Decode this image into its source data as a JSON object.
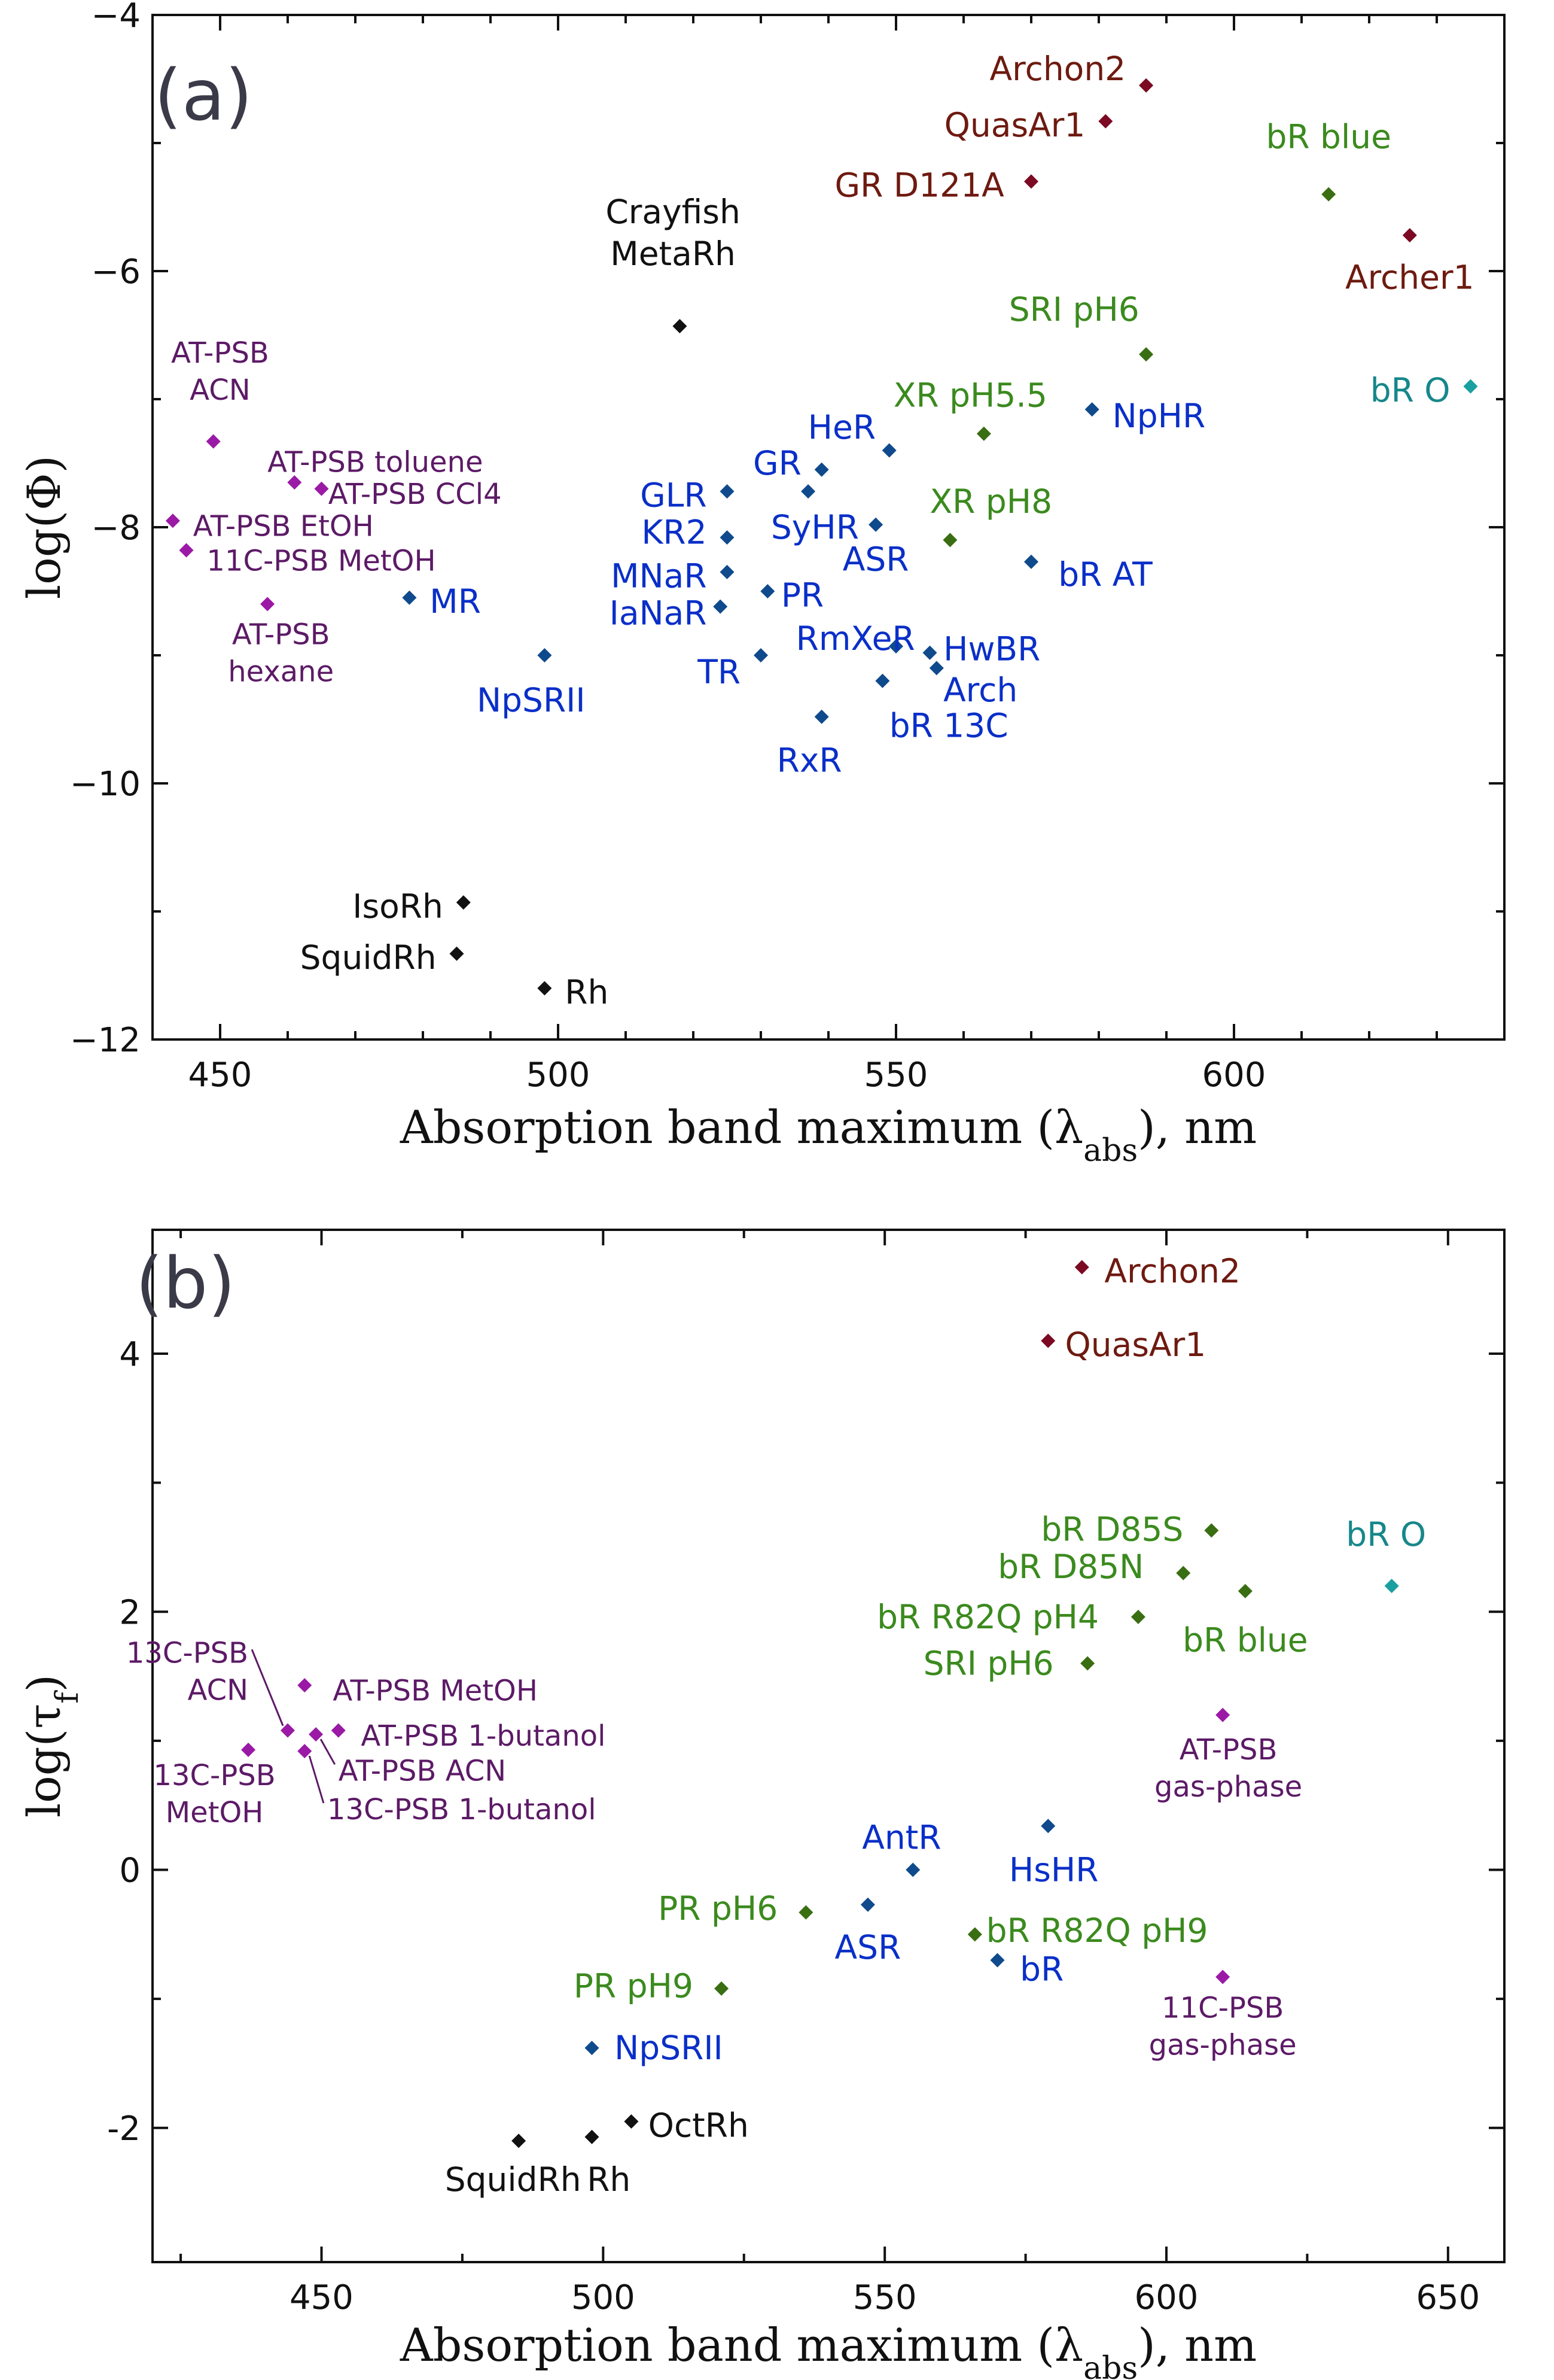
{
  "chart_data": [
    {
      "type": "scatter",
      "panel_letter": "(a)",
      "xlabel": "Absorption band maximum (λabs), nm",
      "ylabel": "log(Φ)",
      "xlim": [
        440,
        640
      ],
      "ylim": [
        -12,
        -4
      ],
      "xticks": [
        "450",
        "500",
        "550",
        "600"
      ],
      "xtick_values": [
        450,
        500,
        550,
        600
      ],
      "yticks": [
        "−4",
        "−6",
        "−8",
        "−10",
        "−12"
      ],
      "ytick_values": [
        -4,
        -6,
        -8,
        -10,
        -12
      ],
      "minor_xticks": [
        460,
        470,
        480,
        490,
        510,
        520,
        530,
        540,
        560,
        570,
        580,
        590,
        610,
        620,
        630
      ],
      "minor_yticks": [
        -5,
        -7,
        -9,
        -11
      ],
      "points": [
        {
          "label": "Archon2",
          "x": 587,
          "y": -4.55,
          "color": "#7b0a22",
          "lines": [
            "Archon2"
          ],
          "anchor": "end",
          "lx": 584,
          "ly": -4.42
        },
        {
          "label": "QuasAr1",
          "x": 581,
          "y": -4.83,
          "color": "#7b0a22",
          "lines": [
            "QuasAr1"
          ],
          "anchor": "end",
          "lx": 578,
          "ly": -4.86
        },
        {
          "label": "GR D121A",
          "x": 570,
          "y": -5.3,
          "color": "#7b0a22",
          "lines": [
            "GR D121A"
          ],
          "anchor": "end",
          "lx": 566,
          "ly": -5.33
        },
        {
          "label": "Archer1",
          "x": 626,
          "y": -5.72,
          "color": "#7b0a22",
          "lines": [
            "Archer1"
          ],
          "anchor": "middle",
          "lx": 626,
          "ly": -6.05
        },
        {
          "label": "bR blue",
          "x": 614,
          "y": -5.4,
          "color": "#3a6e12",
          "lines": [
            "bR blue"
          ],
          "anchor": "middle",
          "lx": 614,
          "ly": -4.95
        },
        {
          "label": "SRI pH6",
          "x": 587,
          "y": -6.65,
          "color": "#3a6e12",
          "lines": [
            "SRI pH6"
          ],
          "anchor": "end",
          "lx": 586,
          "ly": -6.3
        },
        {
          "label": "XR pH5.5",
          "x": 563,
          "y": -7.27,
          "color": "#3a6e12",
          "lines": [
            "XR pH5.5"
          ],
          "anchor": "middle",
          "lx": 561,
          "ly": -6.97
        },
        {
          "label": "XR pH8",
          "x": 558,
          "y": -8.1,
          "color": "#3a6e12",
          "lines": [
            "XR pH8"
          ],
          "anchor": "start",
          "lx": 555,
          "ly": -7.8
        },
        {
          "label": "bR O",
          "x": 635,
          "y": -6.9,
          "color": "#1aa0a0",
          "lines": [
            "bR O"
          ],
          "anchor": "end",
          "lx": 632,
          "ly": -6.93
        },
        {
          "label": "Crayfish MetaRh",
          "x": 518,
          "y": -6.43,
          "color": "#111111",
          "lines": [
            "Crayfish",
            "MetaRh"
          ],
          "anchor": "middle",
          "lx": 517,
          "ly": -5.7
        },
        {
          "label": "IsoRh",
          "x": 486,
          "y": -10.93,
          "color": "#111111",
          "lines": [
            "IsoRh"
          ],
          "anchor": "end",
          "lx": 483,
          "ly": -10.96
        },
        {
          "label": "SquidRh",
          "x": 485,
          "y": -11.33,
          "color": "#111111",
          "lines": [
            "SquidRh"
          ],
          "anchor": "end",
          "lx": 482,
          "ly": -11.36
        },
        {
          "label": "Rh",
          "x": 498,
          "y": -11.6,
          "color": "#111111",
          "lines": [
            "Rh"
          ],
          "anchor": "start",
          "lx": 501,
          "ly": -11.63
        },
        {
          "label": "AT-PSB ACN",
          "x": 449,
          "y": -7.33,
          "color": "#9a1aa6",
          "lines": [
            "AT-PSB",
            "ACN"
          ],
          "anchor": "middle",
          "lx": 450,
          "ly": -6.77
        },
        {
          "label": "AT-PSB toluene",
          "x": 461,
          "y": -7.65,
          "color": "#9a1aa6",
          "lines": [
            "AT-PSB toluene"
          ],
          "anchor": "start",
          "lx": 457,
          "ly": -7.48
        },
        {
          "label": "AT-PSB CCl4",
          "x": 465,
          "y": -7.7,
          "color": "#9a1aa6",
          "lines": [
            "AT-PSB CCl4"
          ],
          "anchor": "start",
          "lx": 466,
          "ly": -7.73
        },
        {
          "label": "AT-PSB EtOH",
          "x": 443,
          "y": -7.95,
          "color": "#9a1aa6",
          "lines": [
            "AT-PSB EtOH"
          ],
          "anchor": "start",
          "lx": 446,
          "ly": -7.98
        },
        {
          "label": "11C-PSB MetOH",
          "x": 445,
          "y": -8.18,
          "color": "#9a1aa6",
          "lines": [
            "11C-PSB MetOH"
          ],
          "anchor": "start",
          "lx": 448,
          "ly": -8.25
        },
        {
          "label": "AT-PSB hexane",
          "x": 457,
          "y": -8.6,
          "color": "#9a1aa6",
          "lines": [
            "AT-PSB",
            "hexane"
          ],
          "anchor": "middle",
          "lx": 459,
          "ly": -8.97
        },
        {
          "label": "MR",
          "x": 478,
          "y": -8.55,
          "color": "#0f4a8c",
          "lines": [
            "MR"
          ],
          "anchor": "start",
          "lx": 481,
          "ly": -8.58
        },
        {
          "label": "NpSRII",
          "x": 498,
          "y": -9.0,
          "color": "#0f4a8c",
          "lines": [
            "NpSRII"
          ],
          "anchor": "middle",
          "lx": 496,
          "ly": -9.35
        },
        {
          "label": "GR",
          "x": 539,
          "y": -7.55,
          "color": "#0f4a8c",
          "lines": [
            "GR"
          ],
          "anchor": "end",
          "lx": 536,
          "ly": -7.5
        },
        {
          "label": "HeR",
          "x": 549,
          "y": -7.4,
          "color": "#0f4a8c",
          "lines": [
            "HeR"
          ],
          "anchor": "end",
          "lx": 547,
          "ly": -7.22
        },
        {
          "label": "NpHR",
          "x": 579,
          "y": -7.08,
          "color": "#0f4a8c",
          "lines": [
            "NpHR"
          ],
          "anchor": "start",
          "lx": 582,
          "ly": -7.13
        },
        {
          "label": "GLR",
          "x": 525,
          "y": -7.72,
          "color": "#0f4a8c",
          "lines": [
            "GLR"
          ],
          "anchor": "end",
          "lx": 522,
          "ly": -7.75
        },
        {
          "label": "SyHR",
          "x": 537,
          "y": -7.72,
          "color": "#0f4a8c",
          "lines": [
            "SyHR"
          ],
          "anchor": "middle",
          "lx": 538,
          "ly": -8.0
        },
        {
          "label": "KR2",
          "x": 525,
          "y": -8.08,
          "color": "#0f4a8c",
          "lines": [
            "KR2"
          ],
          "anchor": "end",
          "lx": 522,
          "ly": -8.04
        },
        {
          "label": "ASR",
          "x": 547,
          "y": -7.98,
          "color": "#0f4a8c",
          "lines": [
            "ASR"
          ],
          "anchor": "middle",
          "lx": 547,
          "ly": -8.25
        },
        {
          "label": "bR AT",
          "x": 570,
          "y": -8.27,
          "color": "#0f4a8c",
          "lines": [
            "bR AT"
          ],
          "anchor": "start",
          "lx": 574,
          "ly": -8.37
        },
        {
          "label": "MNaR",
          "x": 525,
          "y": -8.35,
          "color": "#0f4a8c",
          "lines": [
            "MNaR"
          ],
          "anchor": "end",
          "lx": 522,
          "ly": -8.38
        },
        {
          "label": "PR",
          "x": 531,
          "y": -8.5,
          "color": "#0f4a8c",
          "lines": [
            "PR"
          ],
          "anchor": "start",
          "lx": 533,
          "ly": -8.53
        },
        {
          "label": "IaNaR",
          "x": 524,
          "y": -8.62,
          "color": "#0f4a8c",
          "lines": [
            "IaNaR"
          ],
          "anchor": "end",
          "lx": 522,
          "ly": -8.67
        },
        {
          "label": "RmXeR",
          "x": 550,
          "y": -8.93,
          "color": "#0f4a8c",
          "lines": [
            "RmXeR"
          ],
          "anchor": "middle",
          "lx": 544,
          "ly": -8.87
        },
        {
          "label": "TR",
          "x": 530,
          "y": -9.0,
          "color": "#0f4a8c",
          "lines": [
            "TR"
          ],
          "anchor": "end",
          "lx": 527,
          "ly": -9.13
        },
        {
          "label": "HwBR",
          "x": 555,
          "y": -8.98,
          "color": "#0f4a8c",
          "lines": [
            "HwBR"
          ],
          "anchor": "start",
          "lx": 557,
          "ly": -8.95
        },
        {
          "label": "Arch",
          "x": 556,
          "y": -9.1,
          "color": "#0f4a8c",
          "lines": [
            "Arch"
          ],
          "anchor": "start",
          "lx": 557,
          "ly": -9.27
        },
        {
          "label": "bR 13C",
          "x": 548,
          "y": -9.2,
          "color": "#0f4a8c",
          "lines": [
            "bR 13C"
          ],
          "anchor": "start",
          "lx": 549,
          "ly": -9.55
        },
        {
          "label": "RxR",
          "x": 539,
          "y": -9.48,
          "color": "#0f4a8c",
          "lines": [
            "RxR"
          ],
          "anchor": "end",
          "lx": 542,
          "ly": -9.82
        }
      ]
    },
    {
      "type": "scatter",
      "panel_letter": "(b)",
      "xlabel": "Absorption band maximum (λabs), nm",
      "ylabel": "log(τf)",
      "xlim": [
        420,
        660
      ],
      "ylim": [
        -3.04,
        4.96
      ],
      "xticks": [
        "450",
        "500",
        "550",
        "600",
        "650"
      ],
      "xtick_values": [
        450,
        500,
        550,
        600,
        650
      ],
      "yticks": [
        "4",
        "2",
        "0",
        "-2"
      ],
      "ytick_values": [
        4,
        2,
        0,
        -2
      ],
      "minor_xticks": [
        425,
        475,
        525,
        575,
        625
      ],
      "minor_yticks": [
        3,
        1,
        -1
      ],
      "points": [
        {
          "label": "Archon2",
          "x": 585,
          "y": 4.67,
          "color": "#7b0a22",
          "lines": [
            "Archon2"
          ],
          "anchor": "start",
          "lx": 589,
          "ly": 4.64
        },
        {
          "label": "QuasAr1",
          "x": 579,
          "y": 4.1,
          "color": "#7b0a22",
          "lines": [
            "QuasAr1"
          ],
          "anchor": "start",
          "lx": 582,
          "ly": 4.07
        },
        {
          "label": "bR D85S",
          "x": 608,
          "y": 2.63,
          "color": "#3a6e12",
          "lines": [
            "bR D85S"
          ],
          "anchor": "end",
          "lx": 603,
          "ly": 2.64
        },
        {
          "label": "bR D85N",
          "x": 603,
          "y": 2.3,
          "color": "#3a6e12",
          "lines": [
            "bR D85N"
          ],
          "anchor": "end",
          "lx": 596,
          "ly": 2.35
        },
        {
          "label": "bR blue",
          "x": 614,
          "y": 2.16,
          "color": "#3a6e12",
          "lines": [
            "bR blue"
          ],
          "anchor": "middle",
          "lx": 614,
          "ly": 1.78
        },
        {
          "label": "bR R82Q pH4",
          "x": 595,
          "y": 1.96,
          "color": "#3a6e12",
          "lines": [
            "bR R82Q pH4"
          ],
          "anchor": "end",
          "lx": 588,
          "ly": 1.96
        },
        {
          "label": "SRI pH6",
          "x": 586,
          "y": 1.6,
          "color": "#3a6e12",
          "lines": [
            "SRI pH6"
          ],
          "anchor": "end",
          "lx": 580,
          "ly": 1.6
        },
        {
          "label": "bR O",
          "x": 640,
          "y": 2.2,
          "color": "#1aa0a0",
          "lines": [
            "bR O"
          ],
          "anchor": "middle",
          "lx": 639,
          "ly": 2.6
        },
        {
          "label": "AT-PSB gas-phase",
          "x": 610,
          "y": 1.2,
          "color": "#9a1aa6",
          "lines": [
            "AT-PSB",
            "gas-phase"
          ],
          "anchor": "middle",
          "lx": 611,
          "ly": 0.8
        },
        {
          "label": "AntR",
          "x": 555,
          "y": 0.0,
          "color": "#0f4a8c",
          "lines": [
            "AntR"
          ],
          "anchor": "middle",
          "lx": 553,
          "ly": 0.25
        },
        {
          "label": "HsHR",
          "x": 579,
          "y": 0.34,
          "color": "#0f4a8c",
          "lines": [
            "HsHR"
          ],
          "anchor": "middle",
          "lx": 580,
          "ly": 0.0
        },
        {
          "label": "ASR",
          "x": 547,
          "y": -0.27,
          "color": "#0f4a8c",
          "lines": [
            "ASR"
          ],
          "anchor": "middle",
          "lx": 547,
          "ly": -0.6
        },
        {
          "label": "PR pH6",
          "x": 536,
          "y": -0.33,
          "color": "#3a6e12",
          "lines": [
            "PR pH6"
          ],
          "anchor": "end",
          "lx": 531,
          "ly": -0.3
        },
        {
          "label": "bR R82Q pH9",
          "x": 566,
          "y": -0.5,
          "color": "#3a6e12",
          "lines": [
            "bR R82Q pH9"
          ],
          "anchor": "start",
          "lx": 568,
          "ly": -0.47
        },
        {
          "label": "bR",
          "x": 570,
          "y": -0.7,
          "color": "#0f4a8c",
          "lines": [
            "bR"
          ],
          "anchor": "start",
          "lx": 574,
          "ly": -0.77
        },
        {
          "label": "PR pH9",
          "x": 521,
          "y": -0.92,
          "color": "#3a6e12",
          "lines": [
            "PR pH9"
          ],
          "anchor": "end",
          "lx": 516,
          "ly": -0.9
        },
        {
          "label": "11C-PSB gas-phase",
          "x": 610,
          "y": -0.83,
          "color": "#9a1aa6",
          "lines": [
            "11C-PSB",
            "gas-phase"
          ],
          "anchor": "middle",
          "lx": 610,
          "ly": -1.2
        },
        {
          "label": "NpSRII",
          "x": 498,
          "y": -1.38,
          "color": "#0f4a8c",
          "lines": [
            "NpSRII"
          ],
          "anchor": "start",
          "lx": 502,
          "ly": -1.38
        },
        {
          "label": "OctRh",
          "x": 505,
          "y": -1.95,
          "color": "#111111",
          "lines": [
            "OctRh"
          ],
          "anchor": "start",
          "lx": 508,
          "ly": -1.98
        },
        {
          "label": "SquidRh",
          "x": 485,
          "y": -2.1,
          "color": "#111111",
          "lines": [
            "SquidRh"
          ],
          "anchor": "middle",
          "lx": 484,
          "ly": -2.4
        },
        {
          "label": "Rh",
          "x": 498,
          "y": -2.07,
          "color": "#111111",
          "lines": [
            "Rh"
          ],
          "anchor": "middle",
          "lx": 501,
          "ly": -2.4
        },
        {
          "label": "AT-PSB MetOH",
          "x": 447,
          "y": 1.43,
          "color": "#9a1aa6",
          "lines": [
            "AT-PSB MetOH"
          ],
          "anchor": "start",
          "lx": 452,
          "ly": 1.4
        },
        {
          "label": "13C-PSB ACN",
          "x": 444,
          "y": 1.08,
          "color": "#9a1aa6",
          "lines": [
            "13C-PSB",
            "ACN"
          ],
          "anchor": "end",
          "lx": 437,
          "ly": 1.55,
          "leader": true
        },
        {
          "label": "AT-PSB 1-butanol",
          "x": 453,
          "y": 1.08,
          "color": "#9a1aa6",
          "lines": [
            "AT-PSB 1-butanol"
          ],
          "anchor": "start",
          "lx": 457,
          "ly": 1.05
        },
        {
          "label": "AT-PSB ACN",
          "x": 449,
          "y": 1.05,
          "color": "#9a1aa6",
          "lines": [
            "AT-PSB ACN"
          ],
          "anchor": "start",
          "lx": 453,
          "ly": 0.78,
          "leader": true
        },
        {
          "label": "13C-PSB 1-butanol",
          "x": 447,
          "y": 0.92,
          "color": "#9a1aa6",
          "lines": [
            "13C-PSB 1-butanol"
          ],
          "anchor": "start",
          "lx": 451,
          "ly": 0.48,
          "leader": true
        },
        {
          "label": "13C-PSB MetOH",
          "x": 437,
          "y": 0.93,
          "color": "#9a1aa6",
          "lines": [
            "13C-PSB",
            "MetOH"
          ],
          "anchor": "middle",
          "lx": 431,
          "ly": 0.6
        }
      ]
    }
  ]
}
